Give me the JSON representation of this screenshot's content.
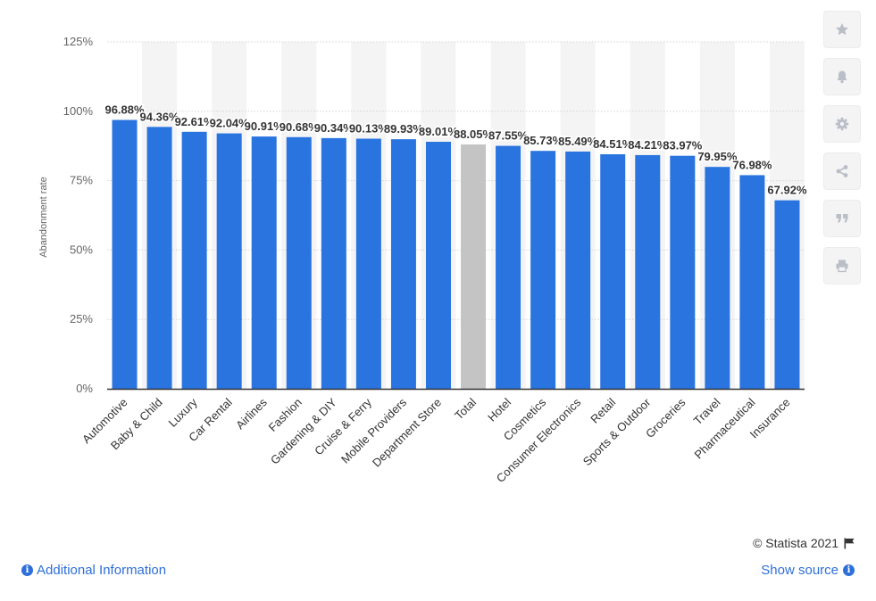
{
  "chart_data": {
    "type": "bar",
    "ylabel": "Abandonment rate",
    "ylim": [
      0,
      125
    ],
    "y_ticks": [
      "0%",
      "25%",
      "50%",
      "75%",
      "100%",
      "125%"
    ],
    "y_tick_values": [
      0,
      25,
      50,
      75,
      100,
      125
    ],
    "grid": true,
    "categories": [
      "Automotive",
      "Baby & Child",
      "Luxury",
      "Car Rental",
      "Airlines",
      "Fashion",
      "Gardening & DIY",
      "Cruise & Ferry",
      "Mobile Providers",
      "Department Store",
      "Total",
      "Hotel",
      "Cosmetics",
      "Consumer Electronics",
      "Retail",
      "Sports & Outdoor",
      "Groceries",
      "Travel",
      "Pharmaceutical",
      "Insurance"
    ],
    "values": [
      96.88,
      94.36,
      92.61,
      92.04,
      90.91,
      90.68,
      90.34,
      90.13,
      89.93,
      89.01,
      88.05,
      87.55,
      85.73,
      85.49,
      84.51,
      84.21,
      83.97,
      79.95,
      76.98,
      67.92
    ],
    "data_labels": [
      "96.88%",
      "94.36%",
      "92.61%",
      "92.04%",
      "90.91%",
      "90.68%",
      "90.34%",
      "90.13%",
      "89.93%",
      "89.01%",
      "88.05%",
      "87.55%",
      "85.73%",
      "85.49%",
      "84.51%",
      "84.21%",
      "83.97%",
      "79.95%",
      "76.98%",
      "67.92%"
    ],
    "highlight_category": "Total",
    "colors": {
      "bar": "#2a74e0",
      "highlight": "#c4c4c4",
      "band": "#f4f4f4",
      "grid": "#d5d5d5",
      "axis": "#333333"
    }
  },
  "toolbar": {
    "icons": [
      "star-icon",
      "bell-icon",
      "gear-icon",
      "share-icon",
      "quote-icon",
      "print-icon"
    ]
  },
  "footer": {
    "copyright": "© Statista 2021",
    "additional_info": "Additional Information",
    "show_source": "Show source"
  }
}
